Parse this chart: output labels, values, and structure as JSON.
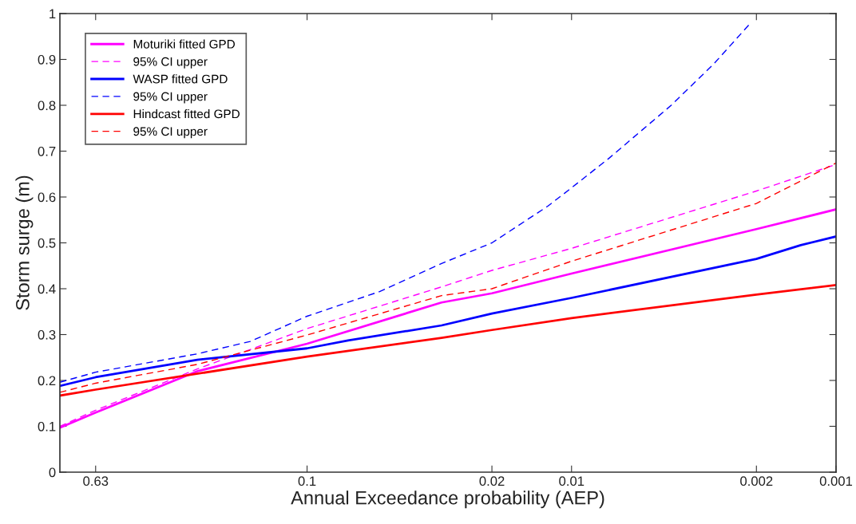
{
  "chart_data": {
    "type": "line",
    "xlabel": "Annual Exceedance probability (AEP)",
    "ylabel": "Storm surge (m)",
    "log": "x",
    "xlim": [
      0.86,
      0.001
    ],
    "xticks": [
      0.63,
      0.1,
      0.02,
      0.01,
      0.002,
      0.001
    ],
    "ylim": [
      0,
      1
    ],
    "yticks": [
      0,
      0.1,
      0.2,
      0.3,
      0.4,
      0.5,
      0.6,
      0.7,
      0.8,
      0.9,
      1
    ],
    "grid": false,
    "legend": "top left",
    "marker": "none",
    "series": [
      {
        "name": "Moturiki fitted GPD",
        "color": "#ff00ff",
        "line_style": "solid",
        "x": [
          0.86,
          0.63,
          0.26,
          0.1,
          0.031,
          0.02,
          0.01,
          0.002,
          0.001
        ],
        "values": [
          0.097,
          0.13,
          0.22,
          0.28,
          0.37,
          0.39,
          0.433,
          0.53,
          0.573
        ]
      },
      {
        "name": "95% CI upper",
        "color": "#ff00ff",
        "line_style": "dashed",
        "x": [
          0.86,
          0.63,
          0.26,
          0.1,
          0.031,
          0.02,
          0.01,
          0.002,
          0.001
        ],
        "values": [
          0.1,
          0.135,
          0.225,
          0.313,
          0.404,
          0.44,
          0.488,
          0.613,
          0.671
        ]
      },
      {
        "name": "WASP fitted GPD",
        "color": "#0000ff",
        "line_style": "solid",
        "x": [
          0.86,
          0.63,
          0.26,
          0.1,
          0.07,
          0.031,
          0.02,
          0.01,
          0.002,
          0.00136,
          0.001
        ],
        "values": [
          0.188,
          0.207,
          0.245,
          0.27,
          0.287,
          0.32,
          0.346,
          0.38,
          0.465,
          0.495,
          0.514
        ]
      },
      {
        "name": "95% CI upper",
        "color": "#0000ff",
        "line_style": "dashed",
        "x": [
          0.86,
          0.63,
          0.26,
          0.164,
          0.1,
          0.053,
          0.031,
          0.02,
          0.0123,
          0.01,
          0.0072,
          0.0042,
          0.0029,
          0.0021
        ],
        "values": [
          0.196,
          0.218,
          0.258,
          0.285,
          0.34,
          0.394,
          0.455,
          0.5,
          0.58,
          0.62,
          0.685,
          0.8,
          0.89,
          0.98
        ]
      },
      {
        "name": "Hindcast fitted GPD",
        "color": "#ff0000",
        "line_style": "solid",
        "x": [
          0.86,
          0.63,
          0.1,
          0.031,
          0.02,
          0.01,
          0.002,
          0.001
        ],
        "values": [
          0.167,
          0.18,
          0.252,
          0.293,
          0.31,
          0.336,
          0.387,
          0.408
        ]
      },
      {
        "name": "95% CI upper",
        "color": "#ff0000",
        "line_style": "dashed",
        "x": [
          0.86,
          0.63,
          0.26,
          0.1,
          0.031,
          0.02,
          0.01,
          0.002,
          0.001
        ],
        "values": [
          0.174,
          0.194,
          0.235,
          0.299,
          0.385,
          0.4,
          0.46,
          0.586,
          0.674
        ]
      }
    ]
  }
}
